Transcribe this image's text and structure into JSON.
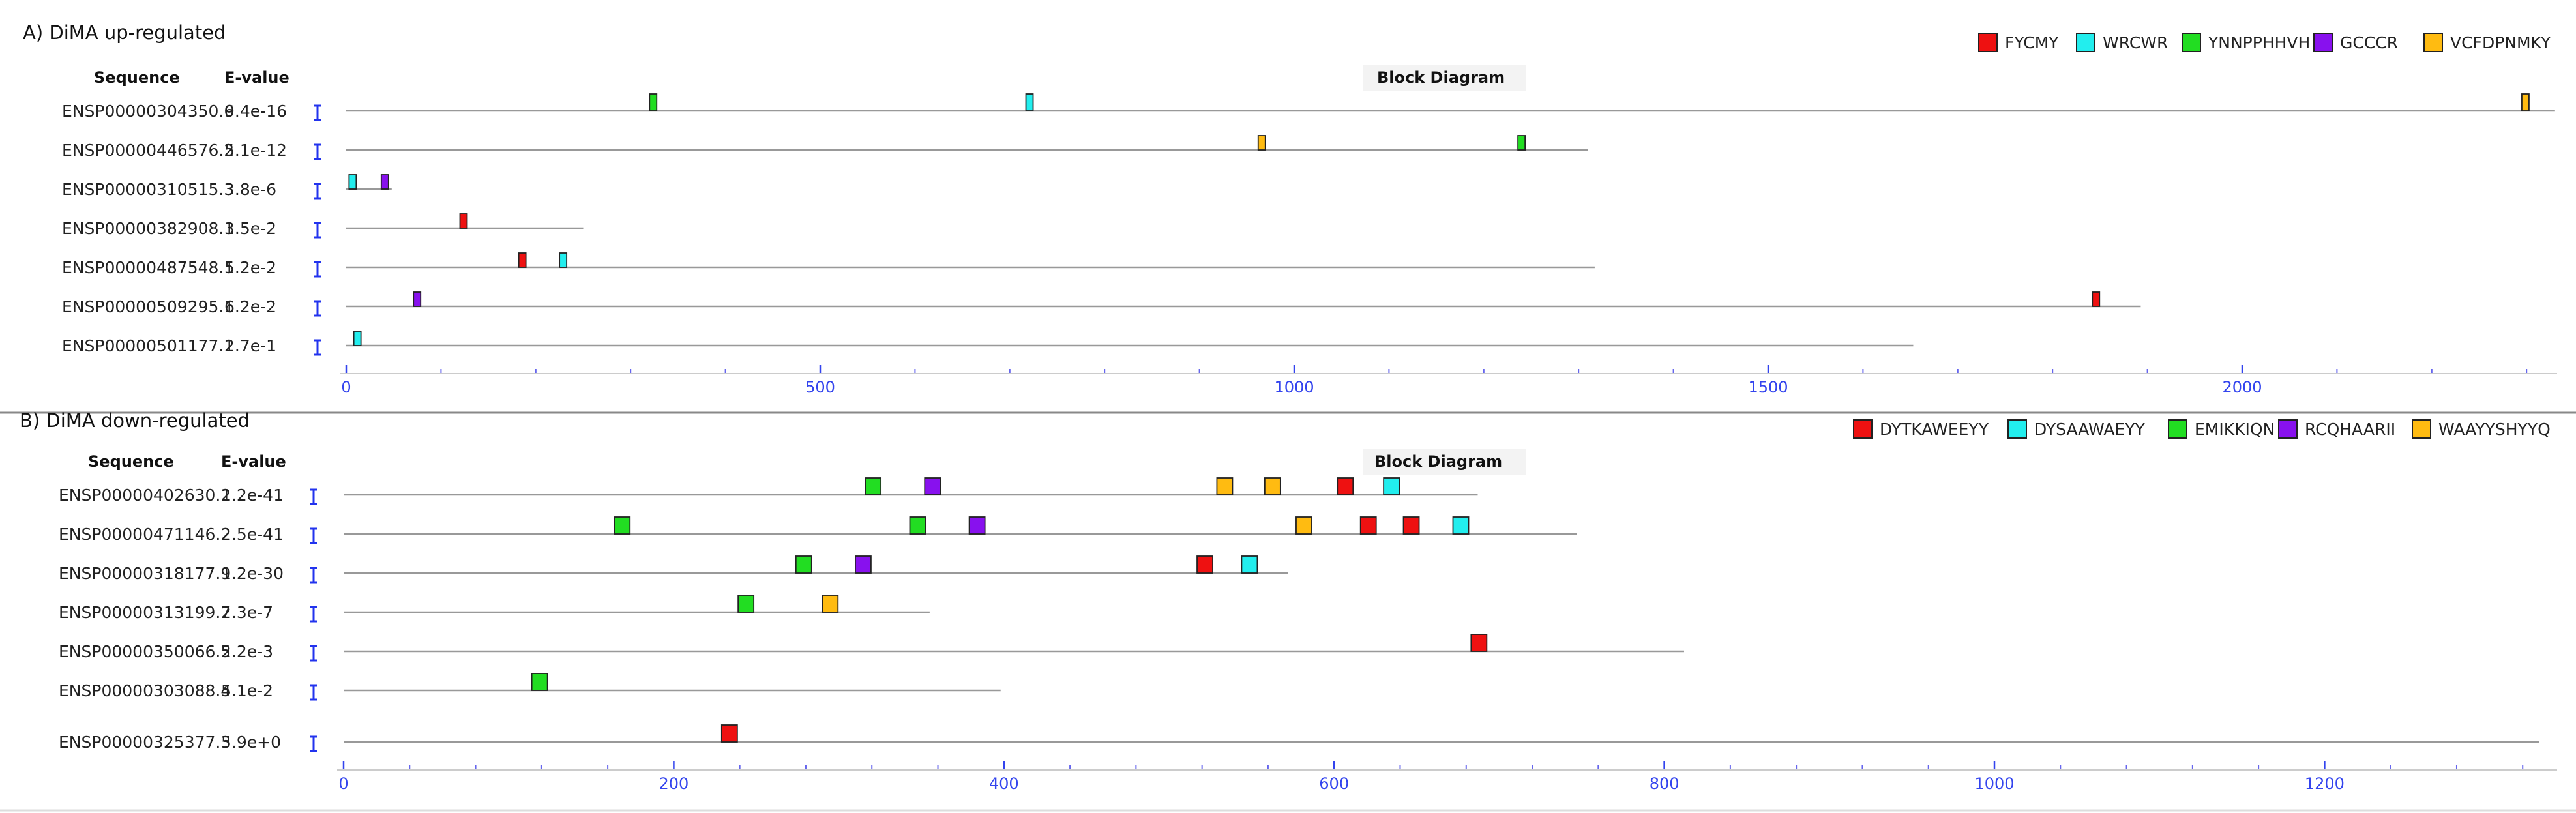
{
  "panels": [
    {
      "title": "A) DiMA up-regulated",
      "col_sequence": "Sequence",
      "col_evalue": "E-value",
      "col_diagram": "Block Diagram",
      "legend": [
        {
          "name": "FYCMY",
          "color": "#ee1111"
        },
        {
          "name": "WRCWR",
          "color": "#22eeee"
        },
        {
          "name": "YNNPPHHVH",
          "color": "#22dd22"
        },
        {
          "name": "GCCCR",
          "color": "#8811ee"
        },
        {
          "name": "VCFDPNMKY",
          "color": "#ffbb11"
        }
      ],
      "axis": {
        "min": 0,
        "max": 2330,
        "ticks": [
          0,
          500,
          1000,
          1500,
          2000
        ],
        "minor_step": 100
      },
      "rows": [
        {
          "seq": "ENSP00000304350.6",
          "evalue": "9.4e-16",
          "length": 2330,
          "blocks": [
            {
              "motif": 2,
              "pos": 320
            },
            {
              "motif": 1,
              "pos": 717
            },
            {
              "motif": 4,
              "pos": 2295
            }
          ]
        },
        {
          "seq": "ENSP00000446576.2",
          "evalue": "5.1e-12",
          "length": 1310,
          "blocks": [
            {
              "motif": 4,
              "pos": 962
            },
            {
              "motif": 2,
              "pos": 1236
            }
          ]
        },
        {
          "seq": "ENSP00000310515.3",
          "evalue": "3.8e-6",
          "length": 48,
          "blocks": [
            {
              "motif": 1,
              "pos": 3
            },
            {
              "motif": 3,
              "pos": 37
            }
          ]
        },
        {
          "seq": "ENSP00000382908.1",
          "evalue": "3.5e-2",
          "length": 250,
          "blocks": [
            {
              "motif": 0,
              "pos": 120
            }
          ]
        },
        {
          "seq": "ENSP00000487548.1",
          "evalue": "5.2e-2",
          "length": 1317,
          "blocks": [
            {
              "motif": 0,
              "pos": 182
            },
            {
              "motif": 1,
              "pos": 225
            }
          ]
        },
        {
          "seq": "ENSP00000509295.1",
          "evalue": "6.2e-2",
          "length": 1893,
          "blocks": [
            {
              "motif": 3,
              "pos": 71
            },
            {
              "motif": 0,
              "pos": 1842
            }
          ]
        },
        {
          "seq": "ENSP00000501177.1",
          "evalue": "2.7e-1",
          "length": 1653,
          "blocks": [
            {
              "motif": 1,
              "pos": 8
            }
          ]
        }
      ]
    },
    {
      "title": "B) DiMA down-regulated",
      "col_sequence": "Sequence",
      "col_evalue": "E-value",
      "col_diagram": "Block Diagram",
      "legend": [
        {
          "name": "DYTKAWEEYY",
          "color": "#ee1111"
        },
        {
          "name": "DYSAAWAEYY",
          "color": "#22eeee"
        },
        {
          "name": "EMIKKIQN",
          "color": "#22dd22"
        },
        {
          "name": "RCQHAARII",
          "color": "#8811ee"
        },
        {
          "name": "WAAYYSHYYQ",
          "color": "#ffbb11"
        }
      ],
      "axis": {
        "min": 0,
        "max": 1330,
        "ticks": [
          0,
          200,
          400,
          600,
          800,
          1000,
          1200
        ],
        "minor_step": 40
      },
      "rows": [
        {
          "seq": "ENSP00000402630.2",
          "evalue": "1.2e-41",
          "length": 687,
          "blocks": [
            {
              "motif": 2,
              "pos": 316
            },
            {
              "motif": 3,
              "pos": 352
            },
            {
              "motif": 4,
              "pos": 529
            },
            {
              "motif": 4,
              "pos": 558
            },
            {
              "motif": 0,
              "pos": 602
            },
            {
              "motif": 1,
              "pos": 630
            }
          ]
        },
        {
          "seq": "ENSP00000471146.2",
          "evalue": "2.5e-41",
          "length": 747,
          "blocks": [
            {
              "motif": 2,
              "pos": 164
            },
            {
              "motif": 2,
              "pos": 343
            },
            {
              "motif": 3,
              "pos": 379
            },
            {
              "motif": 4,
              "pos": 577
            },
            {
              "motif": 0,
              "pos": 616
            },
            {
              "motif": 0,
              "pos": 642
            },
            {
              "motif": 1,
              "pos": 672
            }
          ]
        },
        {
          "seq": "ENSP00000318177.9",
          "evalue": "1.2e-30",
          "length": 572,
          "blocks": [
            {
              "motif": 2,
              "pos": 274
            },
            {
              "motif": 3,
              "pos": 310
            },
            {
              "motif": 0,
              "pos": 517
            },
            {
              "motif": 1,
              "pos": 544
            }
          ]
        },
        {
          "seq": "ENSP00000313199.7",
          "evalue": "2.3e-7",
          "length": 355,
          "blocks": [
            {
              "motif": 2,
              "pos": 239
            },
            {
              "motif": 4,
              "pos": 290
            }
          ]
        },
        {
          "seq": "ENSP00000350066.5",
          "evalue": "2.2e-3",
          "length": 812,
          "blocks": [
            {
              "motif": 0,
              "pos": 683
            }
          ]
        },
        {
          "seq": "ENSP00000303088.4",
          "evalue": "5.1e-2",
          "length": 398,
          "blocks": [
            {
              "motif": 2,
              "pos": 114
            }
          ]
        },
        {
          "seq": "ENSP00000325377.3",
          "evalue": "5.9e+0",
          "length": 1330,
          "blocks": [
            {
              "motif": 0,
              "pos": 229
            }
          ]
        }
      ]
    }
  ]
}
